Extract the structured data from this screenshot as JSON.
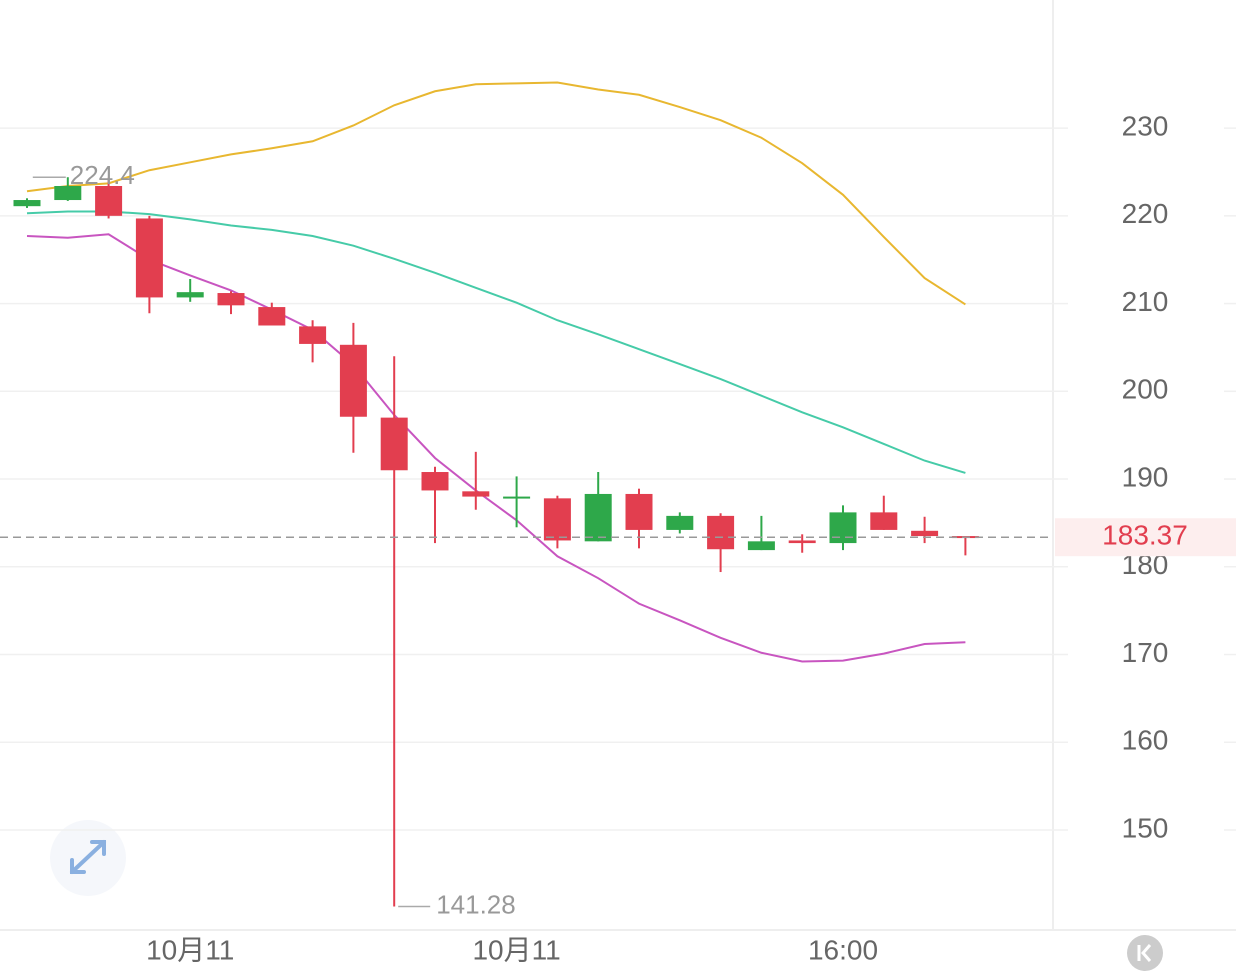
{
  "chart_data": {
    "type": "candlestick",
    "categories": [
      null,
      null,
      null,
      null,
      "10月11",
      null,
      null,
      null,
      null,
      null,
      null,
      null,
      "10月11",
      null,
      null,
      null,
      null,
      null,
      null,
      null,
      "16:00",
      null,
      null,
      null
    ],
    "open": [
      221.1,
      221.8,
      223.4,
      219.7,
      210.7,
      211.2,
      209.6,
      207.4,
      205.3,
      197.0,
      190.8,
      188.6,
      187.9,
      187.8,
      182.9,
      188.3,
      184.2,
      185.8,
      181.9,
      183.0,
      182.7,
      186.2,
      184.1,
      183.5
    ],
    "high": [
      222.0,
      224.4,
      224.35,
      220.0,
      212.8,
      211.4,
      210.1,
      208.1,
      207.8,
      204.0,
      191.4,
      193.1,
      190.3,
      188.1,
      190.8,
      188.9,
      186.2,
      186.1,
      185.8,
      183.7,
      187.0,
      188.1,
      185.7,
      183.4
    ],
    "low": [
      220.9,
      221.7,
      219.7,
      208.9,
      210.2,
      208.8,
      207.5,
      203.3,
      193.0,
      141.28,
      182.7,
      186.5,
      184.5,
      182.1,
      182.9,
      182.1,
      183.8,
      179.4,
      181.9,
      181.6,
      181.9,
      184.2,
      182.7,
      181.3
    ],
    "close": [
      221.8,
      223.4,
      220.0,
      210.7,
      211.3,
      209.8,
      207.5,
      205.4,
      197.1,
      191.0,
      188.7,
      188.0,
      188.0,
      183.0,
      188.3,
      184.2,
      185.8,
      182.0,
      182.9,
      182.7,
      186.2,
      184.2,
      183.5,
      183.37
    ],
    "up_color": "#2ea84a",
    "down_color": "#e23e4f",
    "lines": [
      {
        "color": "#e8b730",
        "values": [
          222.8,
          223.4,
          223.7,
          225.2,
          226.1,
          227.0,
          227.7,
          228.5,
          230.3,
          232.6,
          234.2,
          235.0,
          235.1,
          235.2,
          234.4,
          233.8,
          232.4,
          230.9,
          228.9,
          226.0,
          222.4,
          217.6,
          212.9,
          209.9
        ]
      },
      {
        "color": "#46cba8",
        "values": [
          220.3,
          220.5,
          220.5,
          220.2,
          219.6,
          218.9,
          218.4,
          217.7,
          216.6,
          215.1,
          213.5,
          211.8,
          210.1,
          208.1,
          206.5,
          204.8,
          203.1,
          201.4,
          199.5,
          197.6,
          195.9,
          194.0,
          192.1,
          190.7
        ]
      },
      {
        "color": "#c855c0",
        "values": [
          217.7,
          217.5,
          217.9,
          215.0,
          213.2,
          211.5,
          209.3,
          207.0,
          203.0,
          197.3,
          192.4,
          188.7,
          185.3,
          181.2,
          178.7,
          175.8,
          173.9,
          171.9,
          170.2,
          169.2,
          169.3,
          170.1,
          171.2,
          171.4
        ]
      }
    ],
    "ylim": [
      138.6,
      244.6
    ],
    "yticks": [
      150,
      160,
      170,
      180,
      190,
      200,
      210,
      220,
      230
    ],
    "grid": true
  }
}
